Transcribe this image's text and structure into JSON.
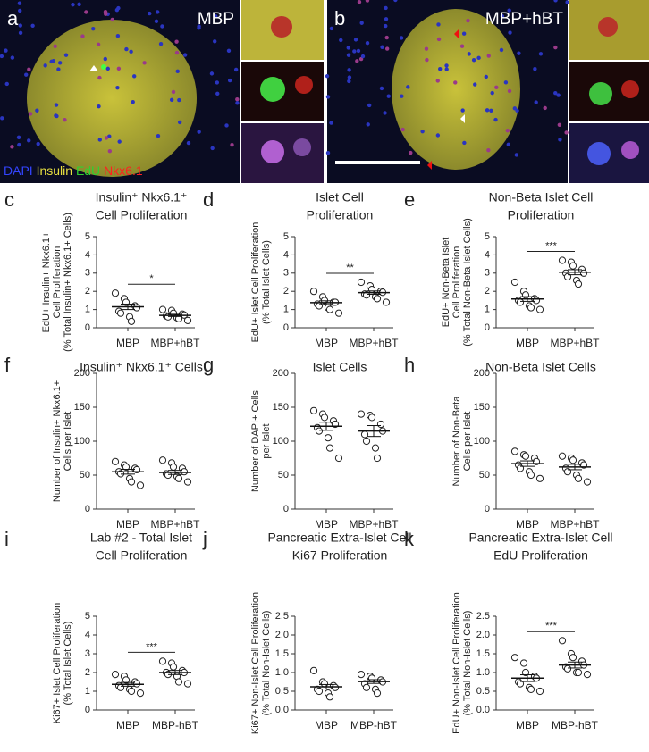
{
  "images": [
    {
      "panel": "a",
      "label": "MBP"
    },
    {
      "panel": "b",
      "label": "MBP+hBT"
    }
  ],
  "stain_legend": [
    "DAPI",
    "Insulin",
    "EdU",
    "Nkx6.1"
  ],
  "chart_data": [
    {
      "type": "dot",
      "panel": "c",
      "title": [
        "Insulin⁺ Nkx6.1⁺",
        "Cell Proliferation"
      ],
      "y_label": [
        "EdU+ Insulin+ Nkx6.1+",
        "Cell Proliferation",
        "(% Total Insulin+ Nkx6.1+ Cells)"
      ],
      "categories": [
        "MBP",
        "MBP+hBT"
      ],
      "points": [
        [
          1.9,
          1.6,
          1.4,
          1.2,
          1.1,
          0.9,
          0.8,
          0.6,
          0.35
        ],
        [
          1.0,
          0.95,
          0.8,
          0.75,
          0.7,
          0.65,
          0.6,
          0.55,
          0.5,
          0.4
        ]
      ],
      "means": [
        1.15,
        0.68
      ],
      "sems": [
        0.15,
        0.06
      ],
      "significance": "*",
      "ylim": [
        0,
        5
      ],
      "yticks": [
        0,
        1,
        2,
        3,
        4,
        5
      ]
    },
    {
      "type": "dot",
      "panel": "d",
      "title": [
        "Islet Cell",
        "Proliferation"
      ],
      "y_label": [
        "EdU+ Islet Cell Proliferation",
        "(% Total Islet Cells)"
      ],
      "categories": [
        "MBP",
        "MBP+hBT"
      ],
      "points": [
        [
          2.0,
          1.7,
          1.5,
          1.4,
          1.4,
          1.3,
          1.2,
          1.1,
          1.0,
          0.8
        ],
        [
          2.5,
          2.3,
          2.1,
          2.0,
          1.95,
          1.85,
          1.8,
          1.7,
          1.6,
          1.4
        ]
      ],
      "means": [
        1.38,
        1.93
      ],
      "sems": [
        0.1,
        0.09
      ],
      "significance": "**",
      "ylim": [
        0,
        5
      ],
      "yticks": [
        0,
        1,
        2,
        3,
        4,
        5
      ]
    },
    {
      "type": "dot",
      "panel": "e",
      "title": [
        "Non-Beta Islet Cell",
        "Proliferation"
      ],
      "y_label": [
        "EdU+ Non-Beta Islet",
        "Cell Proliferation",
        "(% Total Non-Beta Islet Cells)"
      ],
      "categories": [
        "MBP",
        "MBP+hBT"
      ],
      "points": [
        [
          2.5,
          2.0,
          1.8,
          1.6,
          1.5,
          1.5,
          1.4,
          1.2,
          1.1,
          1.0
        ],
        [
          3.7,
          3.6,
          3.4,
          3.2,
          3.0,
          3.0,
          2.8,
          2.6,
          2.4
        ]
      ],
      "means": [
        1.58,
        3.05
      ],
      "sems": [
        0.13,
        0.14
      ],
      "significance": "***",
      "ylim": [
        0,
        5
      ],
      "yticks": [
        0,
        1,
        2,
        3,
        4,
        5
      ]
    },
    {
      "type": "dot",
      "panel": "f",
      "title": [
        "Insulin⁺ Nkx6.1⁺ Cells"
      ],
      "y_label": [
        "Number of Insulin+ Nkx6.1+",
        "Cells per Islet"
      ],
      "categories": [
        "MBP",
        "MBP+hBT"
      ],
      "points": [
        [
          70,
          65,
          62,
          60,
          58,
          55,
          52,
          45,
          40,
          35
        ],
        [
          72,
          68,
          62,
          60,
          55,
          52,
          50,
          48,
          45,
          40
        ]
      ],
      "means": [
        55,
        54
      ],
      "sems": [
        3.5,
        3
      ],
      "ylim": [
        0,
        200
      ],
      "yticks": [
        0,
        50,
        100,
        150,
        200
      ]
    },
    {
      "type": "dot",
      "panel": "g",
      "title": [
        "Islet Cells"
      ],
      "y_label": [
        "Number of DAPI+ Cells",
        "per Islet"
      ],
      "categories": [
        "MBP",
        "MBP+hBT"
      ],
      "points": [
        [
          145,
          140,
          135,
          130,
          125,
          120,
          115,
          105,
          90,
          75
        ],
        [
          140,
          138,
          135,
          125,
          115,
          110,
          100,
          90,
          75
        ]
      ],
      "means": [
        122,
        115
      ],
      "sems": [
        6,
        8
      ],
      "ylim": [
        0,
        200
      ],
      "yticks": [
        0,
        50,
        100,
        150,
        200
      ]
    },
    {
      "type": "dot",
      "panel": "h",
      "title": [
        "Non-Beta Islet Cells"
      ],
      "y_label": [
        "Number of Non-Beta",
        "Cells per Islet"
      ],
      "categories": [
        "MBP",
        "MBP+hBT"
      ],
      "points": [
        [
          85,
          80,
          78,
          75,
          70,
          65,
          60,
          55,
          50,
          45
        ],
        [
          78,
          75,
          72,
          68,
          65,
          60,
          55,
          50,
          45,
          40
        ]
      ],
      "means": [
        67,
        62
      ],
      "sems": [
        4,
        4
      ],
      "ylim": [
        0,
        200
      ],
      "yticks": [
        0,
        50,
        100,
        150,
        200
      ]
    },
    {
      "type": "dot",
      "panel": "i",
      "title": [
        "Lab #2 - Total Islet",
        "Cell Proliferation"
      ],
      "y_label": [
        "Ki67+ Islet Cell Proliferation",
        "(% Total Islet Cells)"
      ],
      "categories": [
        "MBP",
        "MBP-hBT"
      ],
      "points": [
        [
          1.9,
          1.8,
          1.6,
          1.5,
          1.4,
          1.3,
          1.2,
          1.1,
          1.0,
          0.9
        ],
        [
          2.6,
          2.5,
          2.3,
          2.1,
          2.0,
          2.0,
          1.9,
          1.8,
          1.5,
          1.4
        ]
      ],
      "means": [
        1.37,
        2.0
      ],
      "sems": [
        0.1,
        0.11
      ],
      "significance": "***",
      "ylim": [
        0,
        5
      ],
      "yticks": [
        0,
        1,
        2,
        3,
        4,
        5
      ]
    },
    {
      "type": "dot",
      "panel": "j",
      "title": [
        "Pancreatic Extra-Islet Cell",
        "Ki67 Proliferation"
      ],
      "y_label": [
        "Ki67+ Non-Islet Cell Proliferation",
        "(% Total Non-Islet Cells)"
      ],
      "categories": [
        "MBP",
        "MBP-hBT"
      ],
      "points": [
        [
          1.05,
          0.75,
          0.7,
          0.65,
          0.6,
          0.55,
          0.5,
          0.45,
          0.35
        ],
        [
          0.95,
          0.9,
          0.85,
          0.8,
          0.75,
          0.7,
          0.6,
          0.55,
          0.45
        ]
      ],
      "means": [
        0.62,
        0.76
      ],
      "sems": [
        0.06,
        0.05
      ],
      "ylim": [
        0,
        2.5
      ],
      "yticks": [
        {
          "value": 0,
          "label": "0.0"
        },
        0.5,
        {
          "value": 1,
          "label": "1.0"
        },
        1.5,
        {
          "value": 2,
          "label": "2.0"
        },
        2.5
      ]
    },
    {
      "type": "dot",
      "panel": "k",
      "title": [
        "Pancreatic Extra-Islet Cell",
        "EdU Proliferation"
      ],
      "y_label": [
        "EdU+ Non-Islet Cell Proliferation",
        "(% Total Non-Islet Cells)"
      ],
      "categories": [
        "MBP",
        "MBP-hBT"
      ],
      "points": [
        [
          1.4,
          1.25,
          1.0,
          0.9,
          0.85,
          0.75,
          0.7,
          0.6,
          0.55,
          0.5
        ],
        [
          1.85,
          1.5,
          1.4,
          1.3,
          1.2,
          1.15,
          1.1,
          1.0,
          1.0,
          0.95
        ]
      ],
      "means": [
        0.85,
        1.2
      ],
      "sems": [
        0.09,
        0.08
      ],
      "significance": "***",
      "ylim": [
        0,
        2.5
      ],
      "yticks": [
        {
          "value": 0,
          "label": "0.0"
        },
        0.5,
        {
          "value": 1,
          "label": "1.0"
        },
        1.5,
        {
          "value": 2,
          "label": "2.0"
        },
        2.5
      ]
    }
  ]
}
